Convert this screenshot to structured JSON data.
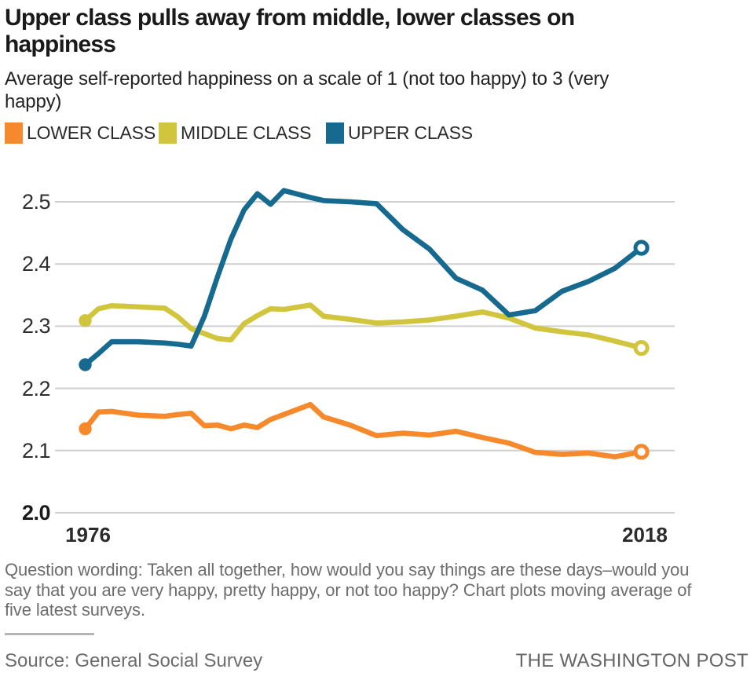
{
  "header": {
    "title_line1": "Upper class pulls away from middle, lower classes on",
    "title_line2": "happiness",
    "subtitle_line1": "Average self-reported happiness on a scale of 1 (not too happy) to 3 (very",
    "subtitle_line2": "happy)"
  },
  "legend": [
    {
      "label": "LOWER CLASS",
      "color": "#F6892B"
    },
    {
      "label": "MIDDLE CLASS",
      "color": "#D1C53D"
    },
    {
      "label": "UPPER CLASS",
      "color": "#176A8F"
    }
  ],
  "chart_data": {
    "type": "line",
    "title": "Upper class pulls away from middle, lower classes on happiness",
    "subtitle": "Average self-reported happiness on a scale of 1 (not too happy) to 3 (very happy)",
    "xlabel": "",
    "ylabel": "Average self-reported happiness (1 to 3)",
    "xlim": [
      1976,
      2018
    ],
    "ylim": [
      2.0,
      2.5
    ],
    "grid": true,
    "legend_position": "top",
    "x_start_label": "1976",
    "x_end_label": "2018",
    "yticks": [
      2.5,
      2.4,
      2.3,
      2.2,
      2.1,
      2.0
    ],
    "ytick_labels": [
      "2.5",
      "2.4",
      "2.3",
      "2.2",
      "2.1",
      "2.0"
    ],
    "x": [
      1976,
      1977,
      1978,
      1980,
      1982,
      1983,
      1984,
      1985,
      1986,
      1987,
      1988,
      1989,
      1990,
      1991,
      1993,
      1994,
      1996,
      1998,
      2000,
      2002,
      2004,
      2006,
      2008,
      2010,
      2012,
      2014,
      2016,
      2018
    ],
    "series": [
      {
        "name": "LOWER CLASS",
        "color": "#F6892B",
        "values": [
          2.135,
          2.162,
          2.163,
          2.157,
          2.155,
          2.158,
          2.16,
          2.14,
          2.141,
          2.135,
          2.141,
          2.137,
          2.15,
          2.158,
          2.174,
          2.154,
          2.141,
          2.124,
          2.128,
          2.125,
          2.131,
          2.121,
          2.112,
          2.097,
          2.094,
          2.096,
          2.09,
          2.098
        ]
      },
      {
        "name": "MIDDLE CLASS",
        "color": "#D1C53D",
        "values": [
          2.309,
          2.328,
          2.333,
          2.331,
          2.329,
          2.315,
          2.296,
          2.288,
          2.28,
          2.278,
          2.304,
          2.317,
          2.328,
          2.327,
          2.334,
          2.316,
          2.311,
          2.305,
          2.307,
          2.31,
          2.316,
          2.323,
          2.313,
          2.297,
          2.291,
          2.286,
          2.276,
          2.265
        ]
      },
      {
        "name": "UPPER CLASS",
        "color": "#176A8F",
        "values": [
          2.238,
          2.256,
          2.275,
          2.275,
          2.273,
          2.271,
          2.268,
          2.316,
          2.38,
          2.44,
          2.487,
          2.513,
          2.496,
          2.518,
          2.507,
          2.502,
          2.5,
          2.497,
          2.455,
          2.424,
          2.377,
          2.358,
          2.318,
          2.325,
          2.356,
          2.372,
          2.393,
          2.426
        ]
      }
    ],
    "marker_start": "filled-dot",
    "marker_end": "open-circle"
  },
  "footer": {
    "note_line1": "Question wording: Taken all together, how would you say things are these days–would you",
    "note_line2": "say that you are very happy, pretty happy, or not too happy? Chart plots moving average of",
    "note_line3": "five latest surveys.",
    "source": "Source: General Social Survey",
    "credit": "THE WASHINGTON POST"
  }
}
